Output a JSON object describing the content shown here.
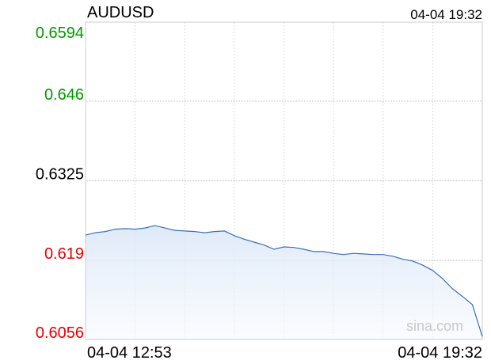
{
  "chart_data": {
    "type": "line",
    "title": "AUDUSD",
    "updated": "04-04 19:32",
    "watermark": "sina.com",
    "categories": [
      "04-04 12:53",
      null,
      null,
      null,
      null,
      null,
      null,
      null,
      null,
      null,
      null,
      null,
      null,
      null,
      null,
      null,
      null,
      null,
      null,
      null,
      null,
      null,
      null,
      null,
      null,
      null,
      null,
      null,
      null,
      null,
      null,
      null,
      null,
      null,
      null,
      null,
      null,
      null,
      null,
      null,
      "04-04 19:32"
    ],
    "series": [
      {
        "name": "AUDUSD",
        "color": "#3a6fb5",
        "values": [
          0.6233,
          0.6237,
          0.6239,
          0.6243,
          0.6244,
          0.6243,
          0.6245,
          0.6249,
          0.6245,
          0.6241,
          0.624,
          0.6239,
          0.6237,
          0.6239,
          0.624,
          0.6232,
          0.6226,
          0.6221,
          0.6216,
          0.6209,
          0.6213,
          0.6212,
          0.6209,
          0.6205,
          0.6205,
          0.6202,
          0.62,
          0.6202,
          0.6201,
          0.62,
          0.62,
          0.6197,
          0.6192,
          0.6189,
          0.6182,
          0.6173,
          0.6159,
          0.6142,
          0.6129,
          0.6115,
          0.6061
        ]
      }
    ],
    "ylim": [
      0.6056,
      0.6594
    ],
    "yticks": [
      0.6594,
      0.646,
      0.6325,
      0.619,
      0.6056
    ],
    "ytick_colors": [
      "#009900",
      "#009900",
      "#000000",
      "#e60000",
      "#e60000"
    ],
    "grid": true
  }
}
